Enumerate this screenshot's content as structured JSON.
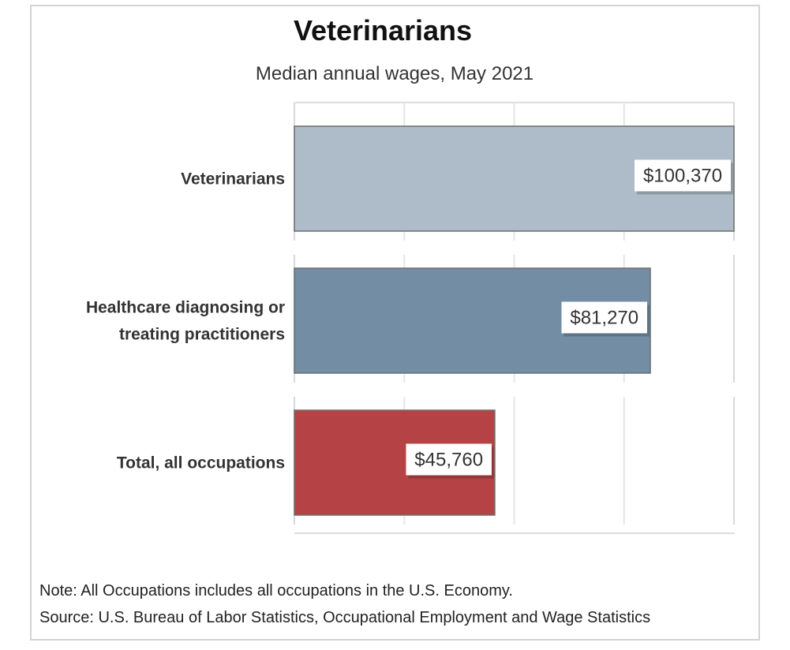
{
  "chart_data": {
    "type": "bar",
    "orientation": "horizontal",
    "title": "Veterinarians",
    "subtitle": "Median annual wages, May 2021",
    "categories": [
      [
        "Veterinarians"
      ],
      [
        "Healthcare diagnosing or",
        "treating practitioners"
      ],
      [
        "Total, all occupations"
      ]
    ],
    "values": [
      100370,
      81270,
      45760
    ],
    "value_labels": [
      "$100,370",
      "$81,270",
      "$45,760"
    ],
    "colors": [
      "#adbcc8",
      "#728da4",
      "#b54346"
    ],
    "xlim": [
      0,
      100370
    ],
    "grid": true
  },
  "footer": {
    "note": "Note: All Occupations includes all occupations in the U.S. Economy.",
    "source": "Source: U.S. Bureau of Labor Statistics, Occupational Employment and Wage Statistics"
  }
}
